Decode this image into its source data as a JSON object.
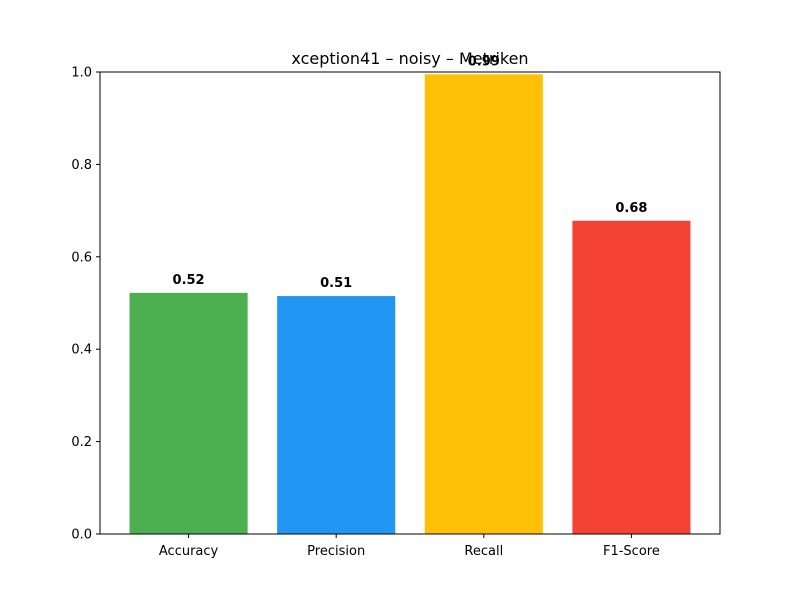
{
  "chart_data": {
    "type": "bar",
    "title": "xception41 – noisy – Metriken",
    "xlabel": "",
    "ylabel": "",
    "categories": [
      "Accuracy",
      "Precision",
      "Recall",
      "F1-Score"
    ],
    "values": [
      0.522,
      0.515,
      0.995,
      0.678
    ],
    "value_labels": [
      "0.52",
      "0.51",
      "0.99",
      "0.68"
    ],
    "colors": [
      "#4caf50",
      "#2196f3",
      "#ffc107",
      "#f44336"
    ],
    "ylim": [
      0,
      1.0
    ],
    "yticks": [
      0.0,
      0.2,
      0.4,
      0.6,
      0.8,
      1.0
    ],
    "ytick_labels": [
      "0.0",
      "0.2",
      "0.4",
      "0.6",
      "0.8",
      "1.0"
    ],
    "grid": false,
    "legend": "none"
  }
}
